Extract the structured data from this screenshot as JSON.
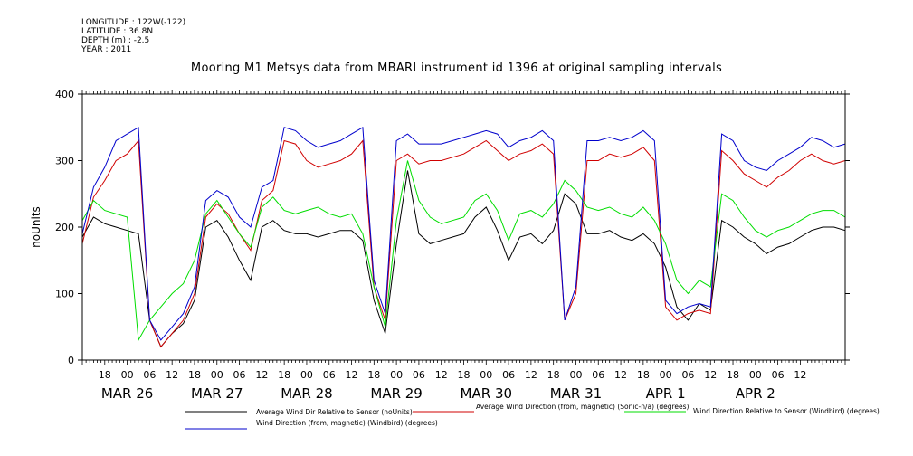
{
  "header": {
    "longitude": "LONGITUDE : 122W(-122)",
    "latitude": "LATITUDE : 36.8N",
    "depth": "DEPTH (m) : -2.5",
    "year": "YEAR : 2011"
  },
  "chart_data": {
    "type": "line",
    "title": "Mooring M1 Metsys data from MBARI instrument id 1396 at original sampling intervals",
    "ylabel": "noUnits",
    "xlabel": "",
    "ylim": [
      0,
      400
    ],
    "yticks": [
      "0",
      "100",
      "200",
      "300",
      "400"
    ],
    "xlim_hours": [
      0,
      204
    ],
    "hour_labels": [
      "18",
      "00",
      "06",
      "12",
      "18",
      "00",
      "06",
      "12",
      "18",
      "00",
      "06",
      "12",
      "18",
      "00",
      "06",
      "12",
      "18",
      "00",
      "06",
      "12",
      "18",
      "00",
      "06",
      "12",
      "18",
      "00",
      "06",
      "12",
      "18",
      "00",
      "06",
      "12"
    ],
    "day_labels": [
      "MAR 26",
      "MAR 27",
      "MAR 28",
      "MAR 29",
      "MAR 30",
      "MAR 31",
      "APR  1",
      "APR  2"
    ],
    "grid": false,
    "legend_placement": "bottom",
    "series": [
      {
        "name": "Average Wind Dir Relative to Sensor (noUnits)",
        "color": "#000000",
        "x": [
          0,
          3,
          6,
          9,
          12,
          15,
          18,
          21,
          24,
          27,
          30,
          33,
          36,
          39,
          42,
          45,
          48,
          51,
          54,
          57,
          60,
          63,
          66,
          69,
          72,
          75,
          78,
          81,
          84,
          87,
          90,
          93,
          96,
          99,
          102,
          105,
          108,
          111,
          114,
          117,
          120,
          123,
          126,
          129,
          132,
          135,
          138,
          141,
          144,
          147,
          150,
          153,
          156,
          159,
          162,
          165,
          168,
          171,
          174,
          177,
          180,
          183,
          186,
          189,
          192,
          195,
          198,
          201,
          204
        ],
        "values": [
          185,
          215,
          205,
          200,
          195,
          190,
          60,
          20,
          40,
          55,
          90,
          200,
          210,
          185,
          150,
          120,
          200,
          210,
          195,
          190,
          190,
          185,
          190,
          195,
          195,
          180,
          90,
          40,
          175,
          285,
          190,
          175,
          180,
          185,
          190,
          215,
          230,
          195,
          150,
          185,
          190,
          175,
          195,
          250,
          235,
          190,
          190,
          195,
          185,
          180,
          190,
          175,
          140,
          80,
          60,
          85,
          75,
          210,
          200,
          185,
          175,
          160,
          170,
          175,
          185,
          195,
          200,
          200,
          195
        ]
      },
      {
        "name": "Average Wind Direction (from, magnetic) (Sonic-n/a) (degrees)",
        "color": "#d00000",
        "x": [
          0,
          3,
          6,
          9,
          12,
          15,
          18,
          21,
          24,
          27,
          30,
          33,
          36,
          39,
          42,
          45,
          48,
          51,
          54,
          57,
          60,
          63,
          66,
          69,
          72,
          75,
          78,
          81,
          84,
          87,
          90,
          93,
          96,
          99,
          102,
          105,
          108,
          111,
          114,
          117,
          120,
          123,
          126,
          129,
          132,
          135,
          138,
          141,
          144,
          147,
          150,
          153,
          156,
          159,
          162,
          165,
          168,
          171,
          174,
          177,
          180,
          183,
          186,
          189,
          192,
          195,
          198,
          201,
          204
        ],
        "values": [
          175,
          245,
          270,
          300,
          310,
          330,
          60,
          20,
          40,
          60,
          100,
          215,
          235,
          220,
          190,
          165,
          240,
          255,
          330,
          325,
          300,
          290,
          295,
          300,
          310,
          330,
          110,
          60,
          300,
          310,
          295,
          300,
          300,
          305,
          310,
          320,
          330,
          315,
          300,
          310,
          315,
          325,
          310,
          60,
          100,
          300,
          300,
          310,
          305,
          310,
          320,
          300,
          80,
          60,
          70,
          75,
          70,
          315,
          300,
          280,
          270,
          260,
          275,
          285,
          300,
          310,
          300,
          295,
          300
        ]
      },
      {
        "name": "Wind Direction Relative to Sensor (Windbird) (degrees)",
        "color": "#00dd00",
        "x": [
          0,
          3,
          6,
          9,
          12,
          15,
          18,
          21,
          24,
          27,
          30,
          33,
          36,
          39,
          42,
          45,
          48,
          51,
          54,
          57,
          60,
          63,
          66,
          69,
          72,
          75,
          78,
          81,
          84,
          87,
          90,
          93,
          96,
          99,
          102,
          105,
          108,
          111,
          114,
          117,
          120,
          123,
          126,
          129,
          132,
          135,
          138,
          141,
          144,
          147,
          150,
          153,
          156,
          159,
          162,
          165,
          168,
          171,
          174,
          177,
          180,
          183,
          186,
          189,
          192,
          195,
          198,
          201,
          204
        ],
        "values": [
          210,
          240,
          225,
          220,
          215,
          30,
          60,
          80,
          100,
          115,
          150,
          220,
          240,
          215,
          190,
          170,
          230,
          245,
          225,
          220,
          225,
          230,
          220,
          215,
          220,
          190,
          110,
          50,
          210,
          300,
          240,
          215,
          205,
          210,
          215,
          240,
          250,
          225,
          180,
          220,
          225,
          215,
          235,
          270,
          255,
          230,
          225,
          230,
          220,
          215,
          230,
          210,
          175,
          120,
          100,
          120,
          110,
          250,
          240,
          215,
          195,
          185,
          195,
          200,
          210,
          220,
          225,
          225,
          215
        ]
      },
      {
        "name": "Wind Direction (from, magnetic) (Windbird) (degrees)",
        "color": "#0000cc",
        "x": [
          0,
          3,
          6,
          9,
          12,
          15,
          18,
          21,
          24,
          27,
          30,
          33,
          36,
          39,
          42,
          45,
          48,
          51,
          54,
          57,
          60,
          63,
          66,
          69,
          72,
          75,
          78,
          81,
          84,
          87,
          90,
          93,
          96,
          99,
          102,
          105,
          108,
          111,
          114,
          117,
          120,
          123,
          126,
          129,
          132,
          135,
          138,
          141,
          144,
          147,
          150,
          153,
          156,
          159,
          162,
          165,
          168,
          171,
          174,
          177,
          180,
          183,
          186,
          189,
          192,
          195,
          198,
          201,
          204
        ],
        "values": [
          190,
          260,
          290,
          330,
          340,
          350,
          60,
          30,
          50,
          70,
          110,
          240,
          255,
          245,
          215,
          200,
          260,
          270,
          350,
          345,
          330,
          320,
          325,
          330,
          340,
          350,
          120,
          70,
          330,
          340,
          325,
          325,
          325,
          330,
          335,
          340,
          345,
          340,
          320,
          330,
          335,
          345,
          330,
          60,
          110,
          330,
          330,
          335,
          330,
          335,
          345,
          330,
          90,
          70,
          80,
          85,
          80,
          340,
          330,
          300,
          290,
          285,
          300,
          310,
          320,
          335,
          330,
          320,
          325
        ]
      }
    ]
  }
}
